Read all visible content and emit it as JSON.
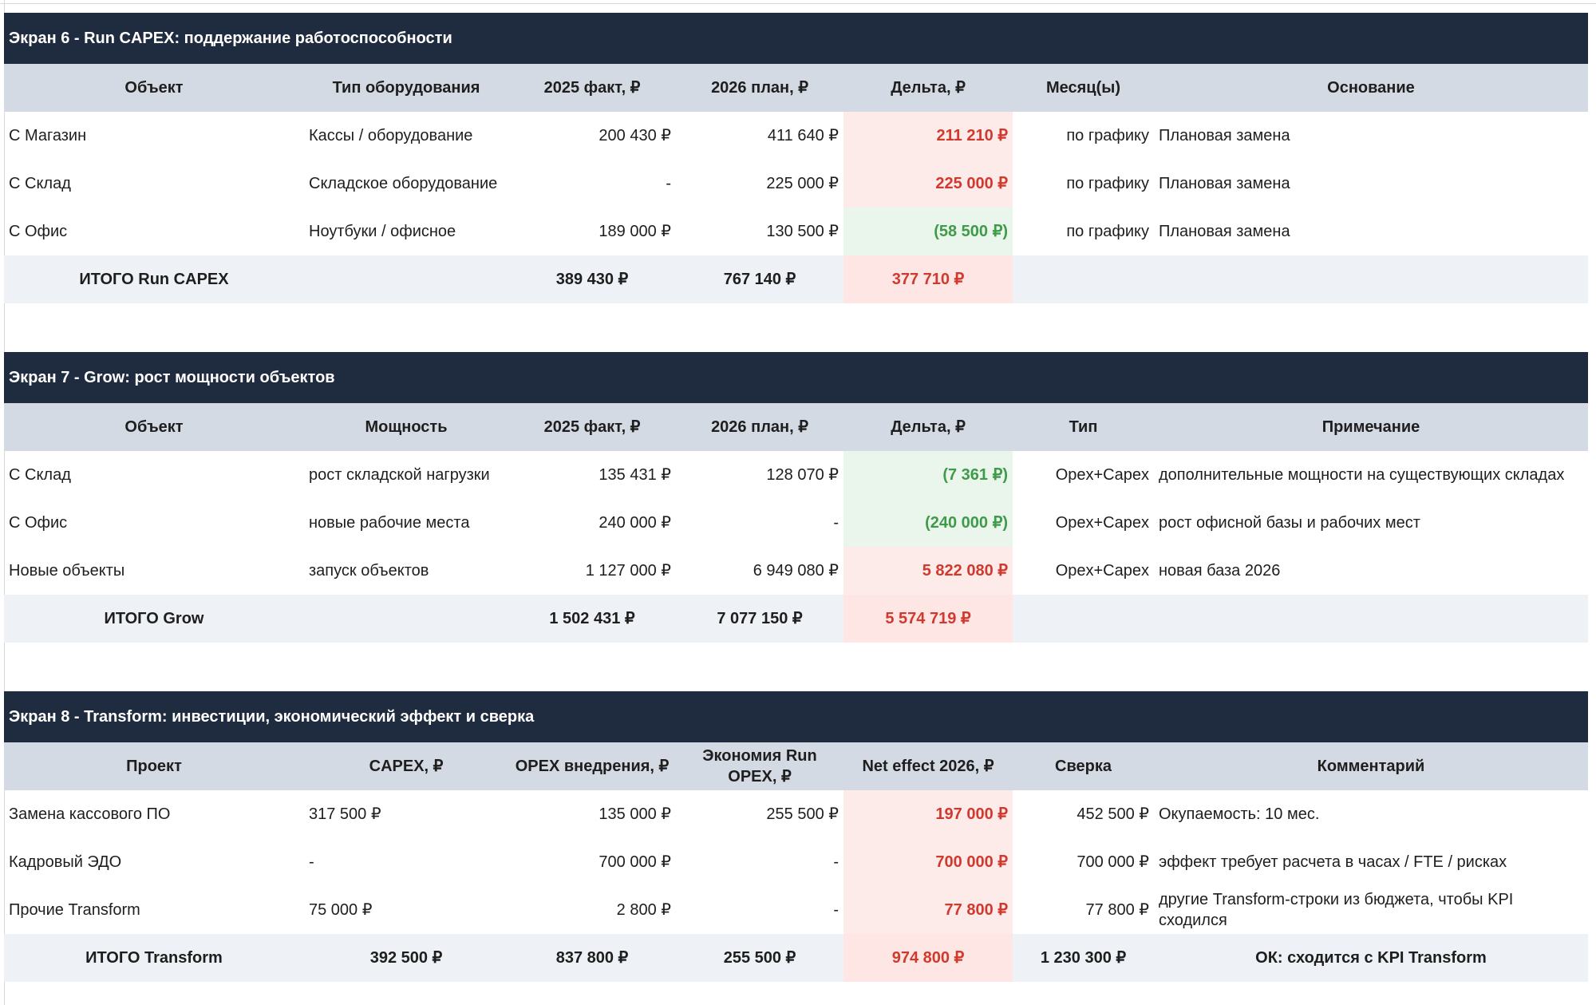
{
  "s6": {
    "title": "Экран 6 - Run CAPEX: поддержание работоспособности",
    "headers": [
      "Объект",
      "Тип оборудования",
      "2025 факт, ₽",
      "2026 план, ₽",
      "Дельта, ₽",
      "Месяц(ы)",
      "Основание"
    ],
    "rows": [
      {
        "obj": "С Магазин",
        "type": "Кассы / оборудование",
        "f25": "200 430 ₽",
        "p26": "411 640 ₽",
        "delta": "211 210 ₽",
        "month": "по графику",
        "basis": "Плановая замена"
      },
      {
        "obj": "С Склад",
        "type": "Складское оборудование",
        "f25": "-",
        "p26": "225 000 ₽",
        "delta": "225 000 ₽",
        "month": "по графику",
        "basis": "Плановая замена"
      },
      {
        "obj": "С Офис",
        "type": "Ноутбуки / офисное",
        "f25": "189 000 ₽",
        "p26": "130 500 ₽",
        "delta": "(58 500 ₽)",
        "month": "по графику",
        "basis": "Плановая замена"
      }
    ],
    "total": {
      "label": "ИТОГО Run CAPEX",
      "f25": "389 430 ₽",
      "p26": "767 140 ₽",
      "delta": "377 710 ₽"
    }
  },
  "s7": {
    "title": "Экран 7 - Grow: рост мощности объектов",
    "headers": [
      "Объект",
      "Мощность",
      "2025 факт, ₽",
      "2026 план, ₽",
      "Дельта, ₽",
      "Тип",
      "Примечание"
    ],
    "rows": [
      {
        "obj": "С Склад",
        "cap": "рост складской нагрузки",
        "f25": "135 431 ₽",
        "p26": "128 070 ₽",
        "delta": "(7 361 ₽)",
        "type": "Opex+Capex",
        "note": "дополнительные мощности на существующих складах"
      },
      {
        "obj": "С Офис",
        "cap": "новые рабочие места",
        "f25": "240 000 ₽",
        "p26": "-",
        "delta": "(240 000 ₽)",
        "type": "Opex+Capex",
        "note": "рост офисной базы и рабочих мест"
      },
      {
        "obj": "Новые объекты",
        "cap": "запуск объектов",
        "f25": "1 127 000 ₽",
        "p26": "6 949 080 ₽",
        "delta": "5 822 080 ₽",
        "type": "Opex+Capex",
        "note": "новая база 2026"
      }
    ],
    "total": {
      "label": "ИТОГО Grow",
      "f25": "1 502 431 ₽",
      "p26": "7 077 150 ₽",
      "delta": "5 574 719 ₽"
    }
  },
  "s8": {
    "title": "Экран 8 - Transform: инвестиции, экономический эффект и сверка",
    "headers": [
      "Проект",
      "CAPEX, ₽",
      "OPEX внедрения, ₽",
      "Экономия Run OPEX, ₽",
      "Net effect 2026, ₽",
      "Сверка",
      "Комментарий"
    ],
    "rows": [
      {
        "proj": "Замена кассового ПО",
        "capex": "317 500 ₽",
        "opex": "135 000 ₽",
        "save": "255 500 ₽",
        "net": "197 000 ₽",
        "check": "452 500 ₽",
        "comment": "Окупаемость: 10 мес."
      },
      {
        "proj": "Кадровый ЭДО",
        "capex": "-",
        "opex": "700 000 ₽",
        "save": "-",
        "net": "700 000 ₽",
        "check": "700 000 ₽",
        "comment": "эффект требует расчета в часах / FTE / рисках"
      },
      {
        "proj": "Прочие Transform",
        "capex": "75 000 ₽",
        "opex": "2 800 ₽",
        "save": "-",
        "net": "77 800 ₽",
        "check": "77 800 ₽",
        "comment": "другие Transform-строки из бюджета, чтобы KPI сходился"
      }
    ],
    "total": {
      "label": "ИТОГО Transform",
      "capex": "392 500 ₽",
      "opex": "837 800 ₽",
      "save": "255 500 ₽",
      "net": "974 800 ₽",
      "check": "1 230 300 ₽",
      "comment": "ОК: сходится с KPI Transform"
    }
  },
  "colors": {
    "banner": "#1f2b3e",
    "header": "#d4dae3",
    "total": "#eef1f5",
    "negative_text": "#d03a2e",
    "positive_text": "#3f9a4a",
    "negative_bg": "#fdebea",
    "positive_bg": "#eaf6ec"
  }
}
